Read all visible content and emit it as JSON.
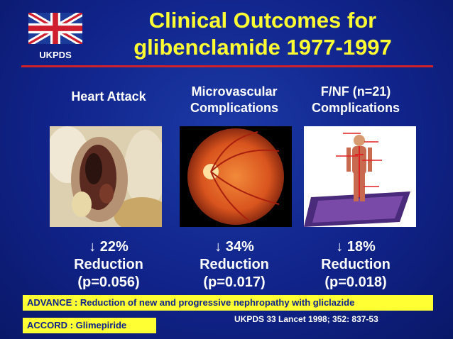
{
  "logo": {
    "label": "UKPDS"
  },
  "title": {
    "line1": "Clinical Outcomes for",
    "line2": "glibenclamide  1977-1997"
  },
  "columns": [
    {
      "heading": "Heart Attack",
      "change": "↓ 22%",
      "label": "Reduction",
      "p": "(p=0.056)"
    },
    {
      "heading": "Microvascular\nComplications",
      "change": "↓ 34%",
      "label": "Reduction",
      "p": "(p=0.017)"
    },
    {
      "heading": "F/NF (n=21)\nComplications",
      "change": "↓ 18%",
      "label": "Reduction",
      "p": "(p=0.018)"
    }
  ],
  "advance_note": "ADVANCE : Reduction of new and progressive nephropathy with gliclazide",
  "accord_note": "ACCORD : Glimepiride",
  "reference": "UKPDS 33 Lancet 1998;  352:  837-53",
  "colors": {
    "background": "#10238a",
    "title": "#ffff33",
    "rule": "#d0202a",
    "note_box": "#ffff33"
  }
}
